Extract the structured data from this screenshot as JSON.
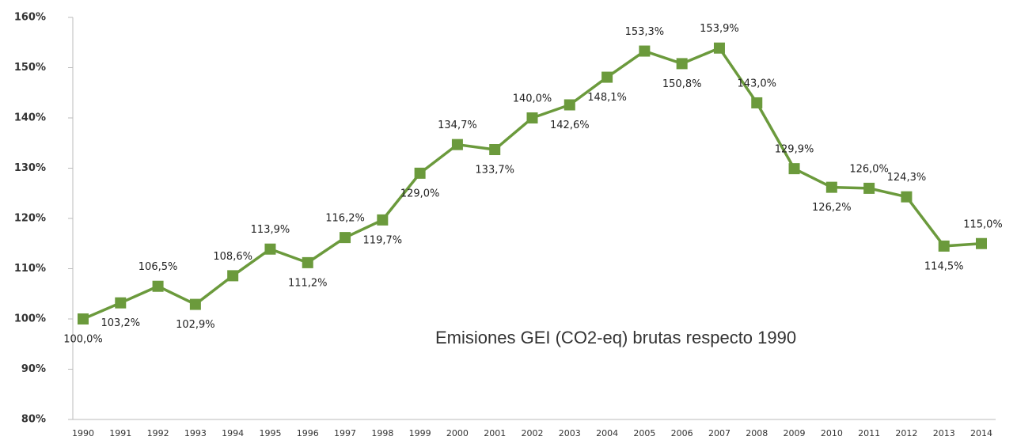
{
  "chart_data": {
    "type": "line",
    "categories": [
      "1990",
      "1991",
      "1992",
      "1993",
      "1994",
      "1995",
      "1996",
      "1997",
      "1998",
      "1999",
      "2000",
      "2001",
      "2002",
      "2003",
      "2004",
      "2005",
      "2006",
      "2007",
      "2008",
      "2009",
      "2010",
      "2011",
      "2012",
      "2013",
      "2014"
    ],
    "series": [
      {
        "name": "Emisiones GEI (CO2-eq) brutas respecto 1990",
        "color": "#6b9a3c",
        "values": [
          100.0,
          103.2,
          106.5,
          102.9,
          108.6,
          113.9,
          111.2,
          116.2,
          119.7,
          129.0,
          134.7,
          133.7,
          140.0,
          142.6,
          148.1,
          153.3,
          150.8,
          153.9,
          143.0,
          129.9,
          126.2,
          126.0,
          124.3,
          114.5,
          115.0
        ],
        "value_labels": [
          "100,0%",
          "103,2%",
          "106,5%",
          "102,9%",
          "108,6%",
          "113,9%",
          "111,2%",
          "116,2%",
          "119,7%",
          "129,0%",
          "134,7%",
          "133,7%",
          "140,0%",
          "142,6%",
          "148,1%",
          "153,3%",
          "150,8%",
          "153,9%",
          "143,0%",
          "129,9%",
          "126,2%",
          "126,0%",
          "124,3%",
          "114,5%",
          "115,0%"
        ]
      }
    ],
    "ylim": [
      80,
      160
    ],
    "yticks": [
      {
        "value": 80,
        "label": "80%"
      },
      {
        "value": 90,
        "label": "90%"
      },
      {
        "value": 100,
        "label": "100%"
      },
      {
        "value": 110,
        "label": "110%"
      },
      {
        "value": 120,
        "label": "120%"
      },
      {
        "value": 130,
        "label": "130%"
      },
      {
        "value": 140,
        "label": "140%"
      },
      {
        "value": 150,
        "label": "150%"
      },
      {
        "value": 160,
        "label": "160%"
      }
    ],
    "grid": false
  }
}
